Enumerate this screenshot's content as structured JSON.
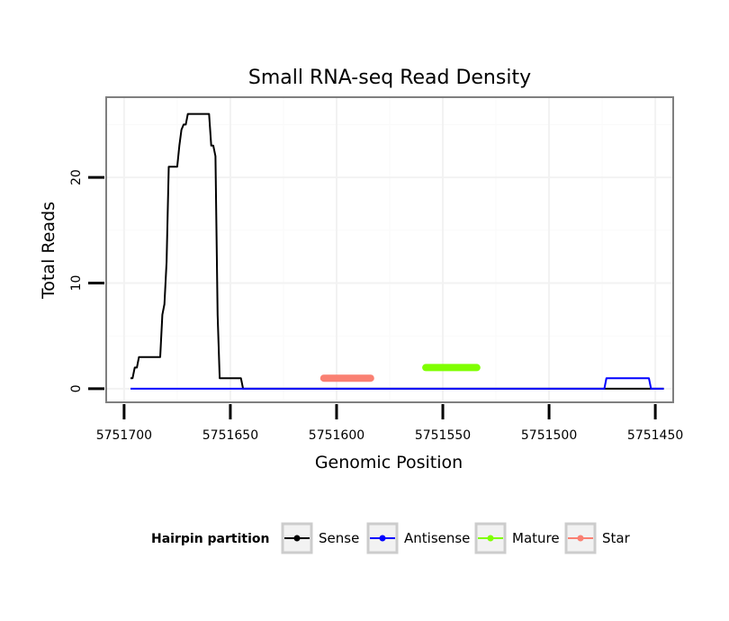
{
  "chart_data": {
    "type": "line",
    "title": "Small RNA-seq Read Density",
    "xlabel": "Genomic Position",
    "ylabel": "Total Reads",
    "xlim": [
      5751708,
      5751442
    ],
    "ylim": [
      -1.2,
      27.5
    ],
    "x_reversed": true,
    "x_ticks": [
      5751700,
      5751650,
      5751600,
      5751550,
      5751500,
      5751450
    ],
    "x_tick_labels": [
      "5751700",
      "5751650",
      "5751600",
      "5751550",
      "5751500",
      "5751450"
    ],
    "y_ticks": [
      0,
      10,
      20
    ],
    "y_tick_labels": [
      "0",
      "10",
      "20"
    ],
    "grid": true,
    "legend": {
      "title": "Hairpin partition",
      "position": "bottom",
      "entries": [
        {
          "name": "Sense",
          "color": "#000000"
        },
        {
          "name": "Antisense",
          "color": "#0000ff"
        },
        {
          "name": "Mature",
          "color": "#7fff00"
        },
        {
          "name": "Star",
          "color": "#fa8072"
        }
      ]
    },
    "series": [
      {
        "name": "Sense",
        "color": "#000000",
        "points": [
          [
            5751697,
            1
          ],
          [
            5751696,
            1
          ],
          [
            5751695,
            2
          ],
          [
            5751694,
            2
          ],
          [
            5751693,
            3
          ],
          [
            5751683,
            3
          ],
          [
            5751682,
            7
          ],
          [
            5751681,
            8
          ],
          [
            5751680,
            12
          ],
          [
            5751679,
            21
          ],
          [
            5751675,
            21
          ],
          [
            5751674,
            23
          ],
          [
            5751673,
            24.5
          ],
          [
            5751672,
            25
          ],
          [
            5751671,
            25
          ],
          [
            5751670,
            26
          ],
          [
            5751660,
            26
          ],
          [
            5751659,
            23
          ],
          [
            5751658,
            23
          ],
          [
            5751657,
            22
          ],
          [
            5751656,
            7
          ],
          [
            5751655,
            1
          ],
          [
            5751645,
            1
          ],
          [
            5751644,
            0
          ],
          [
            5751446,
            0
          ]
        ]
      },
      {
        "name": "Antisense",
        "color": "#0000ff",
        "points": [
          [
            5751697,
            0
          ],
          [
            5751474,
            0
          ],
          [
            5751473,
            1
          ],
          [
            5751453,
            1
          ],
          [
            5751452,
            0
          ],
          [
            5751446,
            0
          ]
        ]
      },
      {
        "name": "Mature",
        "color": "#7fff00",
        "points": [
          [
            5751558,
            2
          ],
          [
            5751534,
            2
          ]
        ]
      },
      {
        "name": "Star",
        "color": "#fa8072",
        "points": [
          [
            5751606,
            1
          ],
          [
            5751584,
            1
          ]
        ]
      }
    ]
  }
}
